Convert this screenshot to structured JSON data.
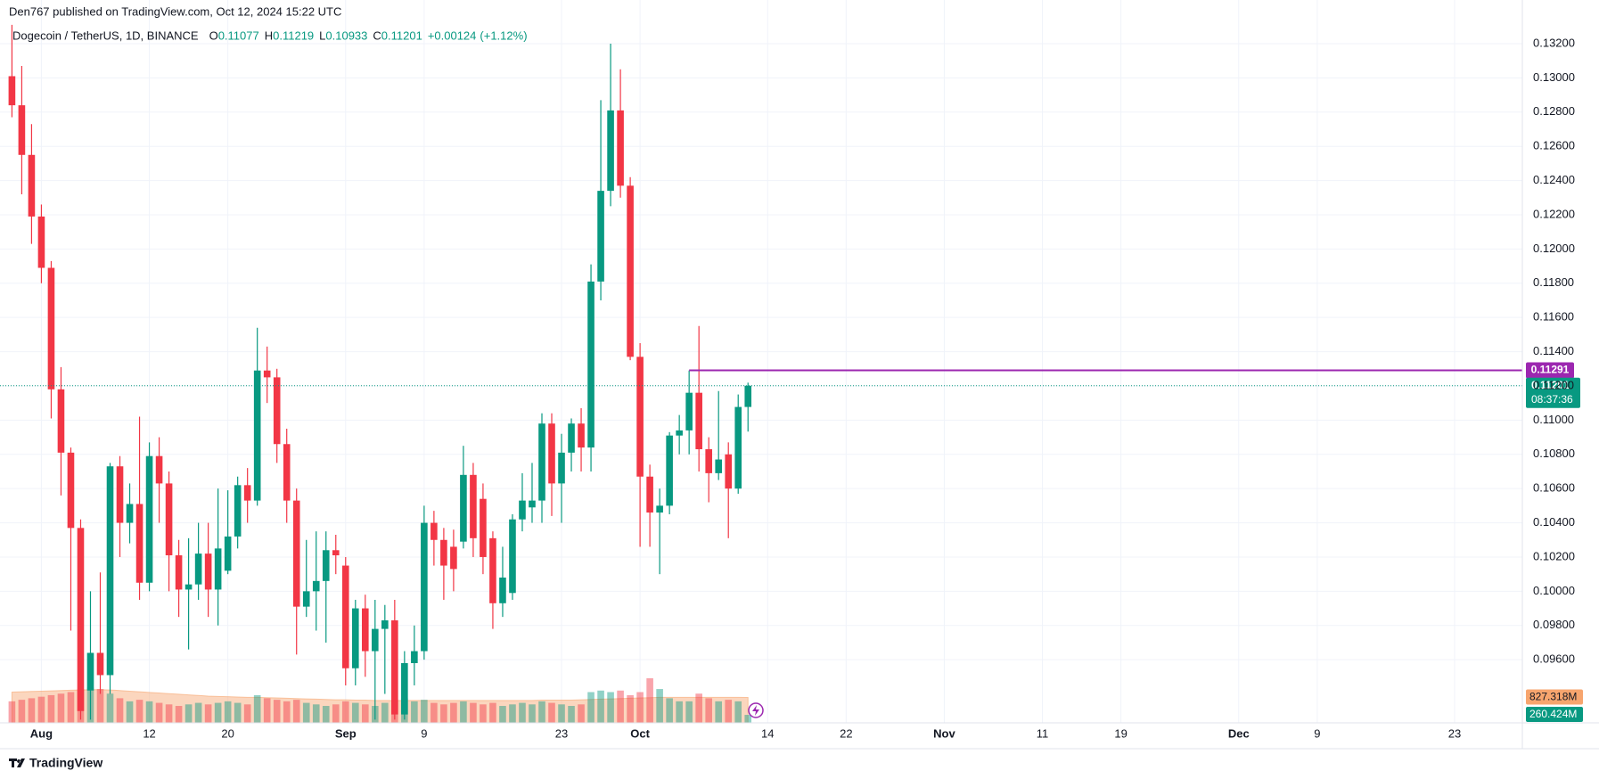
{
  "header": "Den767 published on TradingView.com, Oct 12, 2024 15:22 UTC",
  "footer": "TradingView",
  "chart_data": {
    "type": "candlestick",
    "symbol": "Dogecoin / TetherUS, 1D, BINANCE",
    "legend": [
      {
        "key": "O",
        "value": 0.11077
      },
      {
        "key": "H",
        "value": 0.11219
      },
      {
        "key": "L",
        "value": 0.10933
      },
      {
        "key": "C",
        "value": 0.11201
      }
    ],
    "change": "+0.00124",
    "change_pct": "(+1.12%)",
    "up_color": "#089981",
    "down_color": "#f23645",
    "volume_ma_color": "#f7a56e",
    "level_color": "#9c27b0",
    "grid": true,
    "xlim": [
      -0.4,
      153.9
    ],
    "xticks": [
      {
        "value": 3,
        "label": "Aug"
      },
      {
        "value": 14,
        "label": "12"
      },
      {
        "value": 22,
        "label": "20"
      },
      {
        "value": 34,
        "label": "Sep"
      },
      {
        "value": 42,
        "label": "9"
      },
      {
        "value": 56,
        "label": "23"
      },
      {
        "value": 64,
        "label": "Oct"
      },
      {
        "value": 77,
        "label": "14"
      },
      {
        "value": 85,
        "label": "22"
      },
      {
        "value": 95,
        "label": "Nov"
      },
      {
        "value": 105,
        "label": "11"
      },
      {
        "value": 113,
        "label": "19"
      },
      {
        "value": 125,
        "label": "Dec"
      },
      {
        "value": 133,
        "label": "9"
      },
      {
        "value": 147,
        "label": "23"
      }
    ],
    "ylim": [
      0.09231,
      0.13325
    ],
    "yticks": [
      {
        "value": 0.096,
        "label": "0.09600"
      },
      {
        "value": 0.098,
        "label": "0.09800"
      },
      {
        "value": 0.1,
        "label": "0.10000"
      },
      {
        "value": 0.102,
        "label": "0.10200"
      },
      {
        "value": 0.104,
        "label": "0.10400"
      },
      {
        "value": 0.106,
        "label": "0.10600"
      },
      {
        "value": 0.108,
        "label": "0.10800"
      },
      {
        "value": 0.11,
        "label": "0.11000"
      },
      {
        "value": 0.112,
        "label": "0.11200"
      },
      {
        "value": 0.114,
        "label": "0.11400"
      },
      {
        "value": 0.116,
        "label": "0.11600"
      },
      {
        "value": 0.118,
        "label": "0.11800"
      },
      {
        "value": 0.12,
        "label": "0.12000"
      },
      {
        "value": 0.122,
        "label": "0.12200"
      },
      {
        "value": 0.124,
        "label": "0.12400"
      },
      {
        "value": 0.126,
        "label": "0.12600"
      },
      {
        "value": 0.128,
        "label": "0.12800"
      },
      {
        "value": 0.13,
        "label": "0.13000"
      },
      {
        "value": 0.132,
        "label": "0.13200"
      }
    ],
    "volume_lim": [
      0,
      2000
    ],
    "open": [
      0.1301,
      0.1284,
      0.1255,
      0.1219,
      0.1189,
      0.1118,
      0.1081,
      0.1037,
      0.0942,
      0.0964,
      0.0951,
      0.1073,
      0.104,
      0.1051,
      0.1005,
      0.1079,
      0.1063,
      0.1021,
      0.1001,
      0.1004,
      0.1022,
      0.1001,
      0.1012,
      0.1032,
      0.1062,
      0.1053,
      0.1129,
      0.1125,
      0.1086,
      0.1053,
      0.0991,
      0.1,
      0.1006,
      0.1024,
      0.1015,
      0.0955,
      0.099,
      0.0965,
      0.0978,
      0.0983,
      0.0928,
      0.0958,
      0.0965,
      0.104,
      0.103,
      0.1026,
      0.1029,
      0.1068,
      0.1054,
      0.1031,
      0.0993,
      0.0999,
      0.1042,
      0.1049,
      0.1053,
      0.1098,
      0.1063,
      0.1081,
      0.1098,
      0.1084,
      0.1181,
      0.1234,
      0.1281,
      0.1237,
      0.1137,
      0.1067,
      0.1046,
      0.105,
      0.1091,
      0.1094,
      0.1116,
      0.1083,
      0.1069,
      0.108,
      0.106,
      0.11077
    ],
    "high": [
      0.1331,
      0.1307,
      0.1273,
      0.1226,
      0.1193,
      0.1131,
      0.1084,
      0.1042,
      0.1,
      0.1011,
      0.1075,
      0.1079,
      0.1063,
      0.1102,
      0.1087,
      0.109,
      0.107,
      0.103,
      0.1031,
      0.104,
      0.104,
      0.106,
      0.1059,
      0.1067,
      0.1072,
      0.1154,
      0.1143,
      0.113,
      0.1095,
      0.106,
      0.103,
      0.1035,
      0.1035,
      0.1033,
      0.102,
      0.0995,
      0.0998,
      0.0995,
      0.0992,
      0.0995,
      0.0965,
      0.098,
      0.105,
      0.1047,
      0.1037,
      0.1036,
      0.1085,
      0.1075,
      0.1063,
      0.1035,
      0.1026,
      0.1045,
      0.1069,
      0.1075,
      0.1104,
      0.1104,
      0.1092,
      0.1101,
      0.1107,
      0.1191,
      0.1287,
      0.132,
      0.1305,
      0.1242,
      0.1145,
      0.1074,
      0.106,
      0.1093,
      0.1103,
      0.1129,
      0.1155,
      0.109,
      0.1117,
      0.1087,
      0.1115,
      0.11219
    ],
    "low": [
      0.1277,
      0.1232,
      0.1203,
      0.118,
      0.1101,
      0.1056,
      0.0977,
      0.0925,
      0.0925,
      0.094,
      0.094,
      0.102,
      0.1028,
      0.0995,
      0.1,
      0.104,
      0.1,
      0.0985,
      0.0966,
      0.0995,
      0.0985,
      0.098,
      0.101,
      0.1025,
      0.104,
      0.105,
      0.111,
      0.1075,
      0.104,
      0.0963,
      0.0985,
      0.0977,
      0.097,
      0.101,
      0.0945,
      0.0945,
      0.095,
      0.0925,
      0.094,
      0.0925,
      0.0925,
      0.0945,
      0.096,
      0.1015,
      0.0995,
      0.1,
      0.1025,
      0.102,
      0.101,
      0.0978,
      0.0985,
      0.0995,
      0.1035,
      0.104,
      0.104,
      0.1044,
      0.104,
      0.107,
      0.107,
      0.107,
      0.117,
      0.1225,
      0.123,
      0.1135,
      0.1026,
      0.1026,
      0.101,
      0.1045,
      0.108,
      0.108,
      0.107,
      0.1052,
      0.1065,
      0.1031,
      0.1057,
      0.10933
    ],
    "close": [
      0.1284,
      0.1255,
      0.1219,
      0.1189,
      0.1118,
      0.1081,
      0.1037,
      0.093,
      0.0964,
      0.0951,
      0.1073,
      0.104,
      0.1051,
      0.1005,
      0.1079,
      0.1063,
      0.1021,
      0.1001,
      0.1004,
      0.1022,
      0.1001,
      0.1025,
      0.1032,
      0.1062,
      0.1053,
      0.1129,
      0.1125,
      0.1086,
      0.1053,
      0.0991,
      0.1,
      0.1006,
      0.1024,
      0.1021,
      0.0955,
      0.099,
      0.0965,
      0.0978,
      0.0983,
      0.0928,
      0.0958,
      0.0965,
      0.104,
      0.103,
      0.1015,
      0.1013,
      0.1068,
      0.1031,
      0.102,
      0.0993,
      0.1008,
      0.1042,
      0.1053,
      0.1053,
      0.1098,
      0.1063,
      0.1081,
      0.1098,
      0.1084,
      0.1181,
      0.1234,
      0.1281,
      0.1237,
      0.1137,
      0.1067,
      0.1046,
      0.105,
      0.1091,
      0.1094,
      0.1116,
      0.1083,
      0.1069,
      0.1077,
      0.106,
      0.11077,
      0.11201
    ],
    "volume": [
      700,
      750,
      800,
      850,
      900,
      950,
      1000,
      1100,
      1150,
      1100,
      950,
      800,
      700,
      750,
      700,
      650,
      600,
      550,
      600,
      650,
      600,
      650,
      700,
      650,
      600,
      900,
      800,
      750,
      700,
      750,
      650,
      600,
      550,
      600,
      700,
      650,
      600,
      550,
      650,
      750,
      800,
      700,
      750,
      650,
      600,
      650,
      700,
      650,
      600,
      650,
      550,
      600,
      650,
      600,
      700,
      650,
      600,
      550,
      600,
      1000,
      1050,
      1000,
      1050,
      900,
      1000,
      1450,
      1100,
      800,
      700,
      700,
      950,
      800,
      700,
      750,
      700,
      260.424
    ],
    "volume_ma": [
      1000,
      1010,
      1020,
      1030,
      1040,
      1050,
      1060,
      1070,
      1080,
      1080,
      1070,
      1050,
      1030,
      1010,
      990,
      970,
      950,
      930,
      910,
      890,
      870,
      860,
      850,
      840,
      830,
      830,
      820,
      810,
      800,
      790,
      780,
      770,
      760,
      750,
      750,
      740,
      740,
      730,
      730,
      730,
      730,
      730,
      730,
      730,
      730,
      730,
      730,
      730,
      730,
      730,
      730,
      730,
      730,
      730,
      740,
      740,
      740,
      740,
      750,
      760,
      770,
      780,
      790,
      800,
      810,
      820,
      830,
      830,
      830,
      830,
      830,
      830,
      830,
      830,
      830,
      827.318
    ],
    "level": {
      "value": 0.11291,
      "label": "0.11291"
    },
    "last_price": {
      "value": 0.11201,
      "label": "0.11201",
      "countdown": "08:37:36"
    },
    "volume_ma_label": {
      "value": 827.318,
      "label": "827.318M"
    },
    "volume_label": {
      "value": 260.424,
      "label": "260.424M"
    }
  }
}
